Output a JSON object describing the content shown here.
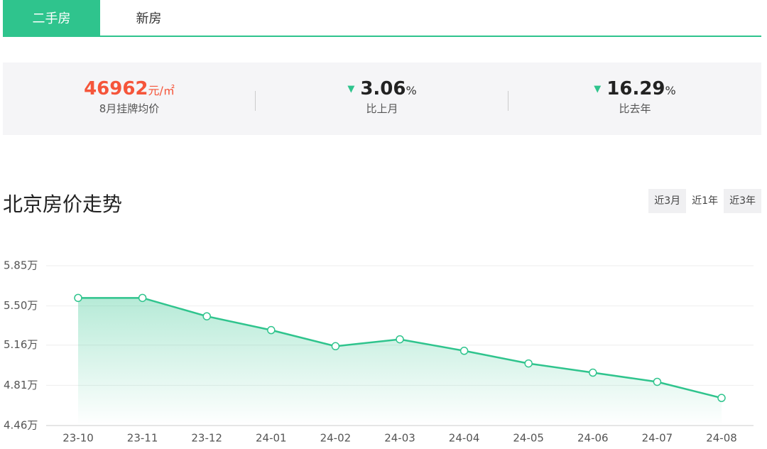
{
  "tabs": [
    "二手房",
    "新房"
  ],
  "active_tab": 0,
  "stats": [
    {
      "value": 46962,
      "unit": "元/㎡",
      "label": "8月挂牌均价"
    },
    {
      "value": 3.06,
      "unit": "%",
      "label": "比上月",
      "trend": "down"
    },
    {
      "value": 16.29,
      "unit": "%",
      "label": "比去年",
      "trend": "down"
    }
  ],
  "section_title": "北京房价走势",
  "range_buttons": [
    "近3月",
    "近1年",
    "近3年"
  ],
  "selected_range": 1,
  "chart_data": {
    "type": "line",
    "categories": [
      "23-10",
      "23-11",
      "23-12",
      "24-01",
      "24-02",
      "24-03",
      "24-04",
      "24-05",
      "24-06",
      "24-07",
      "24-08"
    ],
    "values": [
      5.57,
      5.57,
      5.41,
      5.29,
      5.15,
      5.21,
      5.11,
      5.0,
      4.92,
      4.84,
      4.7
    ],
    "color": "#2fc48d",
    "ylim": [
      4.46,
      5.85
    ],
    "yticks": [
      {
        "value": 4.46,
        "label": "4.46万"
      },
      {
        "value": 4.81,
        "label": "4.81万"
      },
      {
        "value": 5.16,
        "label": "5.16万"
      },
      {
        "value": 5.5,
        "label": "5.50万"
      },
      {
        "value": 5.85,
        "label": "5.85万"
      }
    ],
    "grid": true
  }
}
